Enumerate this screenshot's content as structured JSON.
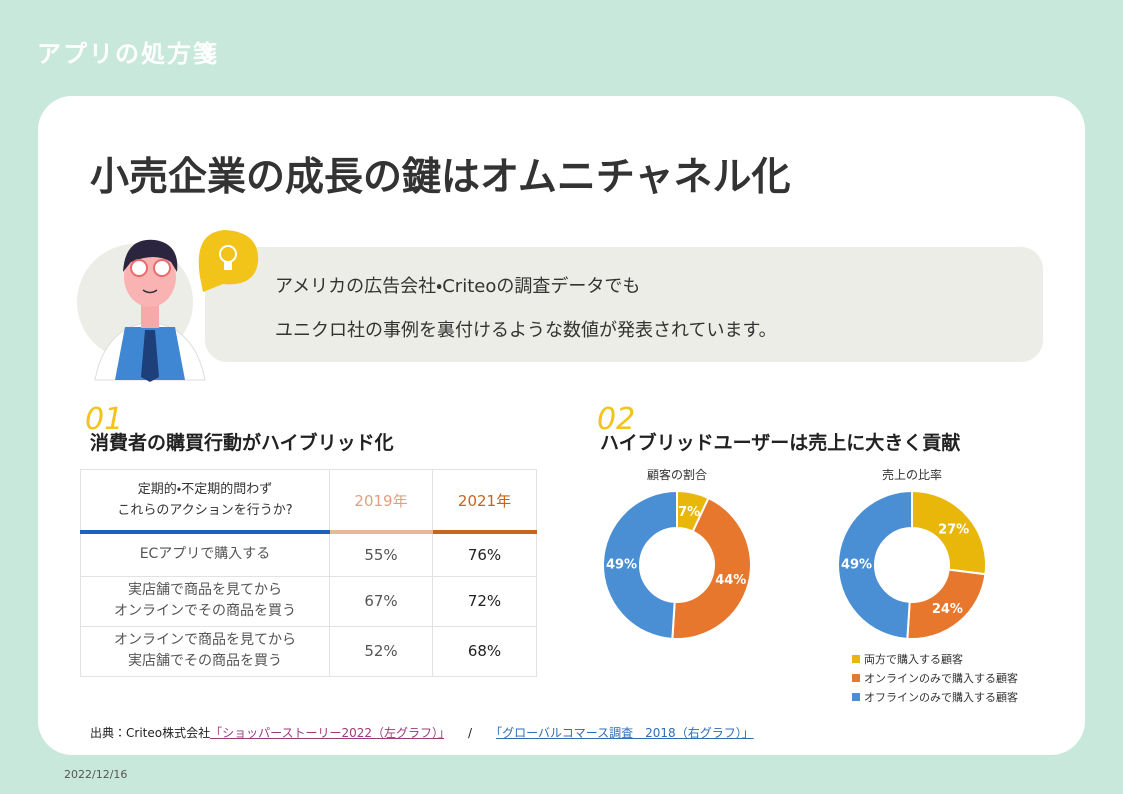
{
  "header": {
    "brand": "アプリの処方箋",
    "title": "小売企業の成長の鍵はオムニチャネル化"
  },
  "callout": {
    "lines": [
      "アメリカの広告会社・Criteoの調査データでも",
      "ユニクロ社の事例を裏付けるような数値が発表されています。"
    ]
  },
  "section1": {
    "number": "01",
    "title": "消費者の購買行動がハイブリッド化"
  },
  "table": {
    "header": [
      [
        "定期的・不定期的問わず",
        "これらのアクションを行うか?"
      ],
      "2019年",
      "2021年"
    ],
    "rows": [
      [
        [
          "ECアプリで購入する"
        ],
        "55%",
        "76%"
      ],
      [
        [
          "実店舗で商品を見てから",
          "オンラインでその商品を買う"
        ],
        "67%",
        "72%"
      ],
      [
        [
          "オンラインで商品を見てから",
          "実店舗でその商品を買う"
        ],
        "52%",
        "68%"
      ]
    ]
  },
  "section2": {
    "number": "02",
    "title": "ハイブリッドユーザーは売上に大きく貢献"
  },
  "legend": {
    "labels": [
      "両方で購入する顧客",
      "オンラインのみで購入する顧客",
      "オフラインのみで購入する顧客"
    ],
    "colors": [
      "#e8b70a",
      "#e8772e",
      "#4a8fd4"
    ]
  },
  "chart_data": [
    {
      "type": "pie",
      "donut": true,
      "title": "顧客の割合",
      "values": [
        7,
        44,
        49
      ],
      "value_labels": [
        "7%",
        "44%",
        "49%"
      ]
    },
    {
      "type": "pie",
      "donut": true,
      "title": "売上の比率",
      "values": [
        27,
        24,
        49
      ],
      "value_labels": [
        "27%",
        "24%",
        "49%"
      ]
    }
  ],
  "footer": {
    "source": "出典：Criteo株式会社",
    "link1": "「ショッパーストーリー2022（左グラフ）」",
    "separator": "/",
    "link2": "「グローバルコマース調査　2018（右グラフ）」",
    "date": "2022/12/16"
  }
}
